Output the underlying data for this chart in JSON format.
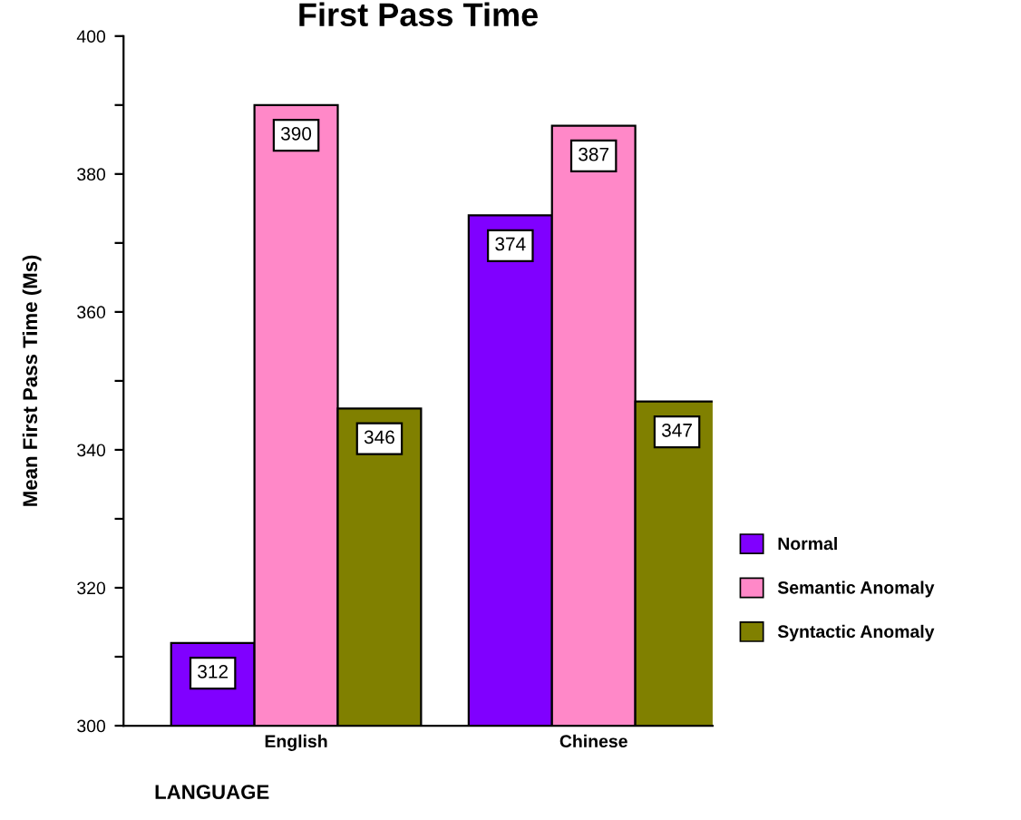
{
  "chart_data": {
    "type": "bar",
    "title": "First Pass Time",
    "xlabel": "LANGUAGE",
    "ylabel": "Mean First Pass Time (Ms)",
    "categories": [
      "English",
      "Chinese"
    ],
    "series": [
      {
        "name": "Normal",
        "color": "#8000ff",
        "values": [
          312,
          374
        ]
      },
      {
        "name": "Semantic Anomaly",
        "color": "#ff88c8",
        "values": [
          390,
          387
        ]
      },
      {
        "name": "Syntactic Anomaly",
        "color": "#808000",
        "values": [
          346,
          347
        ]
      }
    ],
    "ylim": [
      300,
      400
    ],
    "yticks": [
      300,
      {
        "value": 310,
        "label": null
      },
      320,
      {
        "value": 330,
        "label": null
      },
      340,
      {
        "value": 350,
        "label": null
      },
      360,
      {
        "value": 370,
        "label": null
      },
      380,
      {
        "value": 390,
        "label": null
      },
      400
    ],
    "data_labels": true,
    "legend": "right",
    "grid": false
  }
}
